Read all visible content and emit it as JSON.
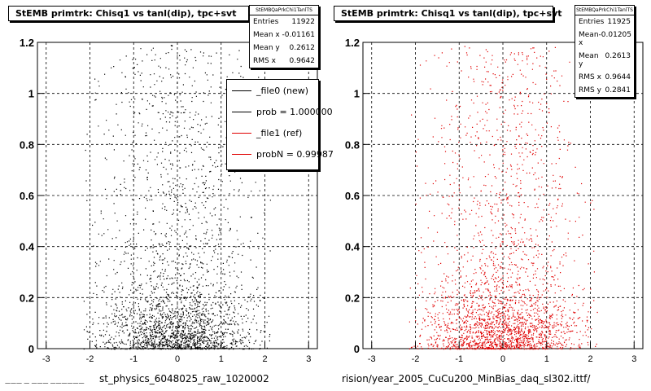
{
  "colors": {
    "ref": "#e00000",
    "new": "#000000",
    "background": "#ffffff"
  },
  "panels": [
    {
      "title": "StEMB primtrk: Chisq1 vs tanl(dip), tpc+svt",
      "stats": {
        "header": "StEMBQaPrkChi1TanlTS",
        "rows": [
          {
            "label": "Entries",
            "value": "11922"
          },
          {
            "label": "Mean x",
            "value": "-0.01161"
          },
          {
            "label": "Mean y",
            "value": "0.2612"
          },
          {
            "label": "RMS x",
            "value": "0.9642"
          }
        ]
      },
      "bottom_label": "st_physics_6048025_raw_1020002",
      "legend": [
        {
          "label": "_file0 (new)",
          "color": "#000000"
        },
        {
          "label": "prob = 1.000000",
          "color": "#000000"
        },
        {
          "label": "_file1 (ref)",
          "color": "#e00000"
        },
        {
          "label": "probN = 0.99987",
          "color": "#e00000"
        }
      ]
    },
    {
      "title": "StEMB primtrk: Chisq1 vs tanl(dip), tpc+svt",
      "stats": {
        "header": "StEMBQaPrkChi1TanlTS",
        "rows": [
          {
            "label": "Entries",
            "value": "11925"
          },
          {
            "label": "Mean x",
            "value": "-0.01205"
          },
          {
            "label": "Mean y",
            "value": "0.2613"
          },
          {
            "label": "RMS x",
            "value": "0.9644"
          },
          {
            "label": "RMS y",
            "value": "0.2841"
          }
        ]
      },
      "bottom_label": "rision/year_2005_CuCu200_MinBias_daq_sl302.ittf/"
    }
  ],
  "footer_text": "——— — ——— ——————",
  "chart_data": [
    {
      "type": "scatter",
      "title": "StEMB primtrk: Chisq1 vs tanl(dip), tpc+svt",
      "xlabel": "st_physics_6048025_raw_1020002",
      "ylabel": "",
      "xlim": [
        -3.2,
        3.2
      ],
      "ylim": [
        0,
        1.2
      ],
      "xticks": [
        -3,
        -2,
        -1,
        0,
        1,
        2,
        3
      ],
      "yticks": [
        0,
        0.2,
        0.4,
        0.6,
        0.8,
        1,
        1.2
      ],
      "grid": true,
      "series": [
        {
          "name": "_file0 (new)",
          "color": "#000000",
          "entries": 11922,
          "mean_x": -0.01161,
          "mean_y": 0.2612,
          "rms_x": 0.9642
        }
      ]
    },
    {
      "type": "scatter",
      "title": "StEMB primtrk: Chisq1 vs tanl(dip), tpc+svt",
      "xlabel": "rision/year_2005_CuCu200_MinBias_daq_sl302.ittf/",
      "ylabel": "",
      "xlim": [
        -3.2,
        3.2
      ],
      "ylim": [
        0,
        1.2
      ],
      "xticks": [
        -3,
        -2,
        -1,
        0,
        1,
        2,
        3
      ],
      "yticks": [
        0,
        0.2,
        0.4,
        0.6,
        0.8,
        1,
        1.2
      ],
      "grid": true,
      "series": [
        {
          "name": "_file1 (ref)",
          "color": "#e00000",
          "entries": 11925,
          "mean_x": -0.01205,
          "mean_y": 0.2613,
          "rms_x": 0.9644,
          "rms_y": 0.2841
        }
      ]
    }
  ]
}
